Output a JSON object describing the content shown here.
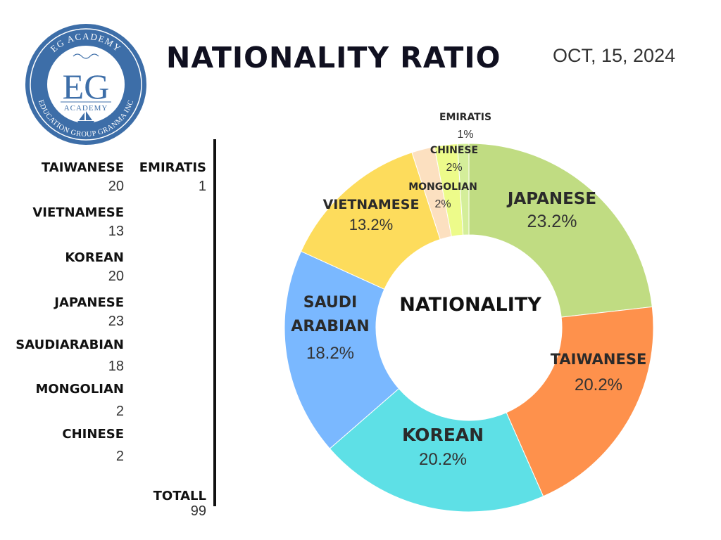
{
  "header": {
    "title": "NATIONALITY RATIO",
    "date": "OCT, 15, 2024"
  },
  "logo": {
    "top_text": "EG ACADEMY",
    "monogram": "EG",
    "sub_text": "ACADEMY",
    "bottom_text": "EDUCATION GROUP GRANMA INC",
    "ring_color": "#3d6ea8"
  },
  "legend": {
    "items": [
      {
        "name": "TAIWANESE",
        "value": "20"
      },
      {
        "name": "VIETNAMESE",
        "value": "13"
      },
      {
        "name": "KOREAN",
        "value": "20"
      },
      {
        "name": "JAPANESE",
        "value": "23"
      },
      {
        "name": "SAUDIARABIAN",
        "value": "18"
      },
      {
        "name": "MONGOLIAN",
        "value": "2"
      },
      {
        "name": "CHINESE",
        "value": "2"
      }
    ],
    "emiratis": {
      "name": "EMIRATIS",
      "value": "1"
    },
    "total": {
      "name": "TOTALL",
      "value": "99"
    }
  },
  "chart_data": {
    "type": "pie",
    "center_label": "NATIONALITY",
    "slices": [
      {
        "label": "JAPANESE",
        "value": 23.2,
        "pct_label": "23.2%",
        "color": "#c0dc82"
      },
      {
        "label": "TAIWANESE",
        "value": 20.2,
        "pct_label": "20.2%",
        "color": "#fe914c"
      },
      {
        "label": "KOREAN",
        "value": 20.2,
        "pct_label": "20.2%",
        "color": "#5ee0e6"
      },
      {
        "label": "SAUDI ARABIAN",
        "label_lines": [
          "SAUDI",
          "ARABIAN"
        ],
        "value": 18.2,
        "pct_label": "18.2%",
        "color": "#7ab8ff"
      },
      {
        "label": "VIETNAMESE",
        "value": 13.2,
        "pct_label": "13.2%",
        "color": "#fddc5c"
      },
      {
        "label": "MONGOLIAN",
        "value": 2,
        "pct_label": "2%",
        "color": "#fce0c0"
      },
      {
        "label": "CHINESE",
        "value": 2,
        "pct_label": "2%",
        "color": "#edfb8a"
      },
      {
        "label": "EMIRATIS",
        "value": 1,
        "pct_label": "1%",
        "color": "#d4ee9a"
      }
    ]
  }
}
